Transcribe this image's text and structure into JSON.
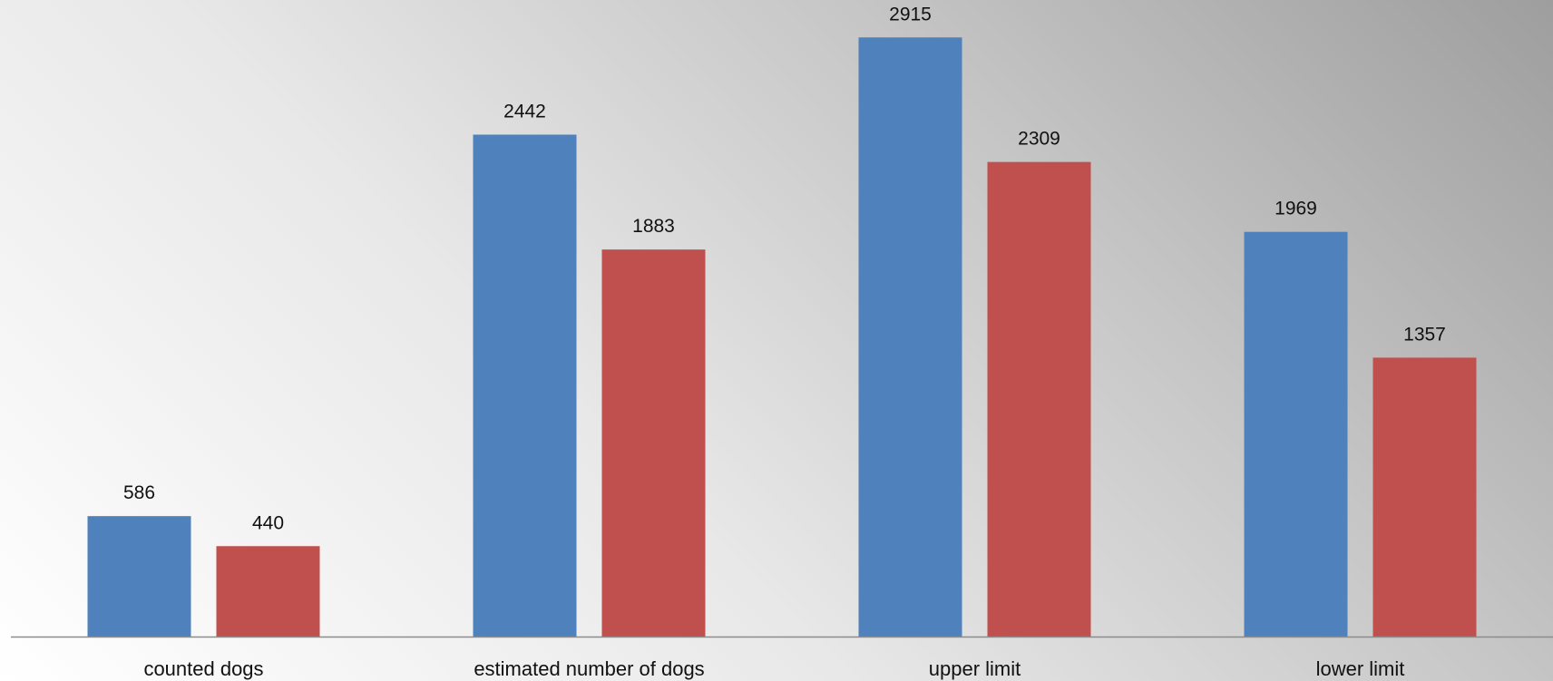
{
  "chart_data": {
    "type": "bar",
    "categories": [
      "counted dogs",
      "estimated number of dogs",
      "upper limit",
      "lower limit"
    ],
    "series": [
      {
        "values": [
          586,
          2442,
          2915,
          1969
        ],
        "color": "#4f81bd"
      },
      {
        "values": [
          440,
          1883,
          2309,
          1357
        ],
        "color": "#c0504d"
      }
    ],
    "ylim": [
      0,
      3000
    ],
    "grid": false,
    "legend": "none",
    "show_data_labels": true
  },
  "colors": {
    "axis": "#8c8c8c"
  }
}
